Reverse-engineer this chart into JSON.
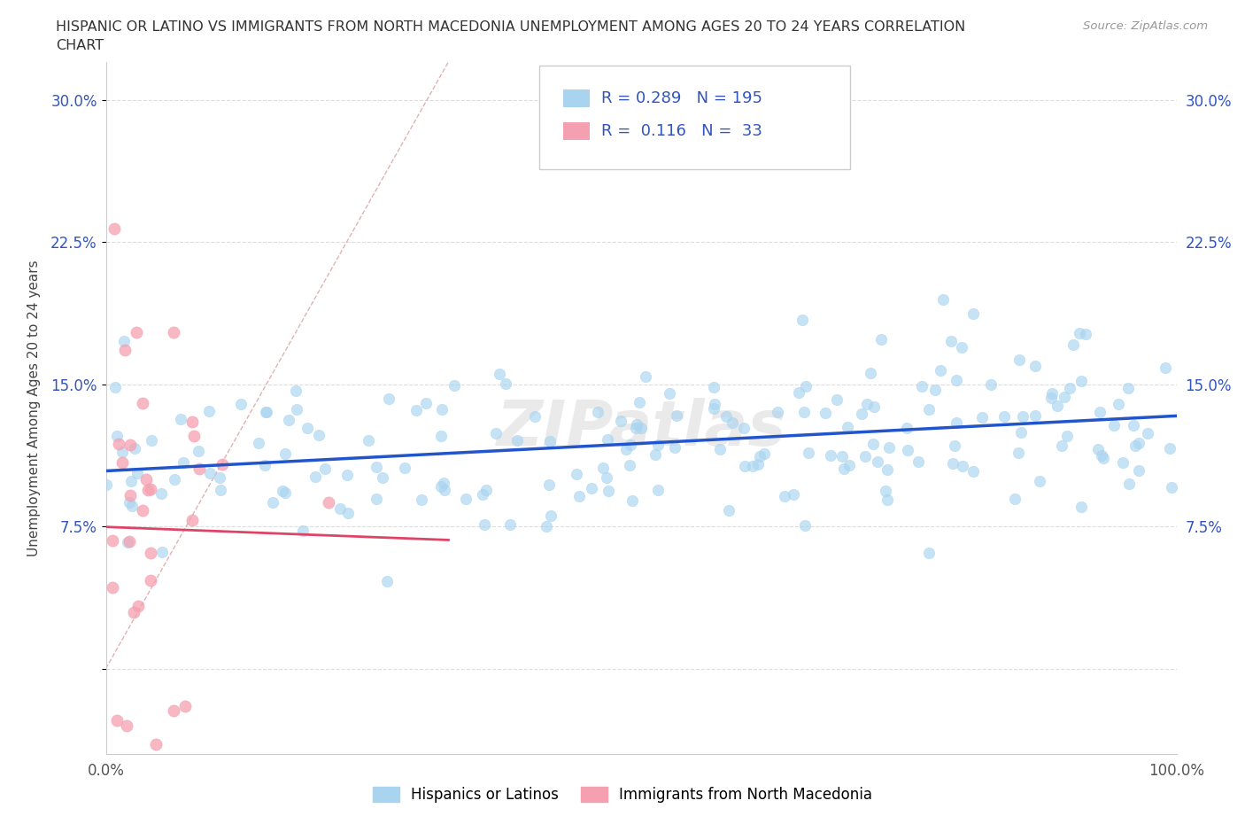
{
  "title_line1": "HISPANIC OR LATINO VS IMMIGRANTS FROM NORTH MACEDONIA UNEMPLOYMENT AMONG AGES 20 TO 24 YEARS CORRELATION",
  "title_line2": "CHART",
  "source_text": "Source: ZipAtlas.com",
  "ylabel": "Unemployment Among Ages 20 to 24 years",
  "ytick_vals": [
    0.0,
    0.075,
    0.15,
    0.225,
    0.3
  ],
  "ytick_labels": [
    "",
    "7.5%",
    "15.0%",
    "22.5%",
    "30.0%"
  ],
  "xlim": [
    0.0,
    1.0
  ],
  "ylim": [
    -0.045,
    0.32
  ],
  "blue_R": 0.289,
  "blue_N": 195,
  "pink_R": 0.116,
  "pink_N": 33,
  "legend_label_blue": "Hispanics or Latinos",
  "legend_label_pink": "Immigrants from North Macedonia",
  "watermark": "ZIPatlas",
  "blue_color": "#A8D4F0",
  "pink_color": "#F5A0B0",
  "blue_line_color": "#2255CC",
  "pink_line_color": "#DD4466",
  "diagonal_color": "#DDAAAA",
  "text_color": "#3355BB",
  "axis_color": "#AAAAAA"
}
